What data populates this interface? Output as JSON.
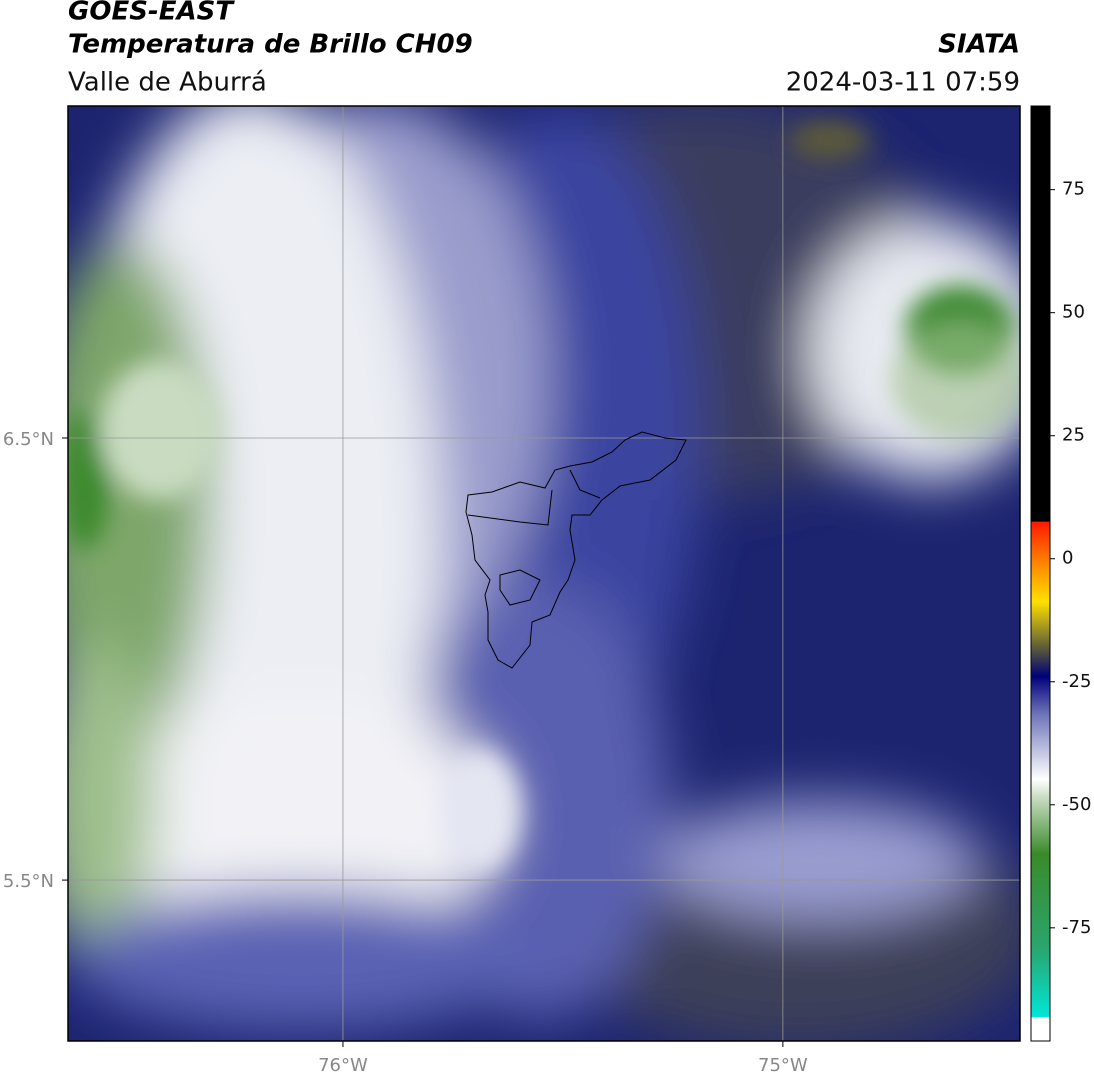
{
  "header": {
    "title": "GOES-EAST",
    "subtitle": "Temperatura de Brillo CH09",
    "region": "Valle de Aburrá",
    "source": "SIATA",
    "datetime": "2024-03-11 07:59"
  },
  "map": {
    "lonlim": [
      -76.625,
      -74.461
    ],
    "latlim": [
      5.136,
      7.251
    ],
    "lon_ticks": [
      {
        "value": -76,
        "label": "76°W"
      },
      {
        "value": -75,
        "label": "75°W"
      }
    ],
    "lat_ticks": [
      {
        "value": 6.5,
        "label": "6.5°N"
      },
      {
        "value": 5.5,
        "label": "5.5°N"
      }
    ]
  },
  "colorbar": {
    "lim": [
      -98,
      92
    ],
    "ticks": [
      -75,
      -50,
      -25,
      0,
      25,
      50,
      75
    ]
  }
}
